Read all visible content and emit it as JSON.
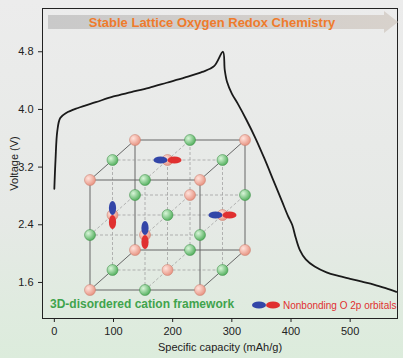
{
  "chart_data": {
    "type": "line",
    "title": "Stable Lattice Oxygen Redox Chemistry",
    "x_label": "Specific capacity (mAh/g)",
    "y_label": "Voltage (V)",
    "x": [
      0,
      2,
      5,
      10,
      20,
      40,
      70,
      100,
      130,
      160,
      190,
      220,
      250,
      270,
      285,
      288,
      292,
      300,
      310,
      325,
      340,
      355,
      370,
      385,
      395,
      402,
      408,
      415,
      425,
      440,
      460,
      480,
      500,
      520,
      540,
      560,
      578
    ],
    "values": [
      2.9,
      3.3,
      3.7,
      3.88,
      3.95,
      4.02,
      4.1,
      4.18,
      4.24,
      4.3,
      4.37,
      4.44,
      4.52,
      4.6,
      4.8,
      4.55,
      4.38,
      4.22,
      4.08,
      3.85,
      3.6,
      3.32,
      3.02,
      2.72,
      2.52,
      2.4,
      2.22,
      2.05,
      1.92,
      1.82,
      1.74,
      1.69,
      1.65,
      1.61,
      1.57,
      1.52,
      1.47
    ],
    "color": "#1a1a1a",
    "xlim": [
      -20,
      580
    ],
    "xticks": [
      0,
      100,
      200,
      300,
      400,
      500
    ],
    "ylim": [
      1.1,
      5.4
    ],
    "yticks": [
      1.6,
      2.4,
      3.2,
      {
        "value": 4,
        "label": "4.0"
      },
      4.8
    ],
    "annotations": [
      "3D-disordered cation framework",
      "Nonbonding O 2p orbitals"
    ]
  }
}
